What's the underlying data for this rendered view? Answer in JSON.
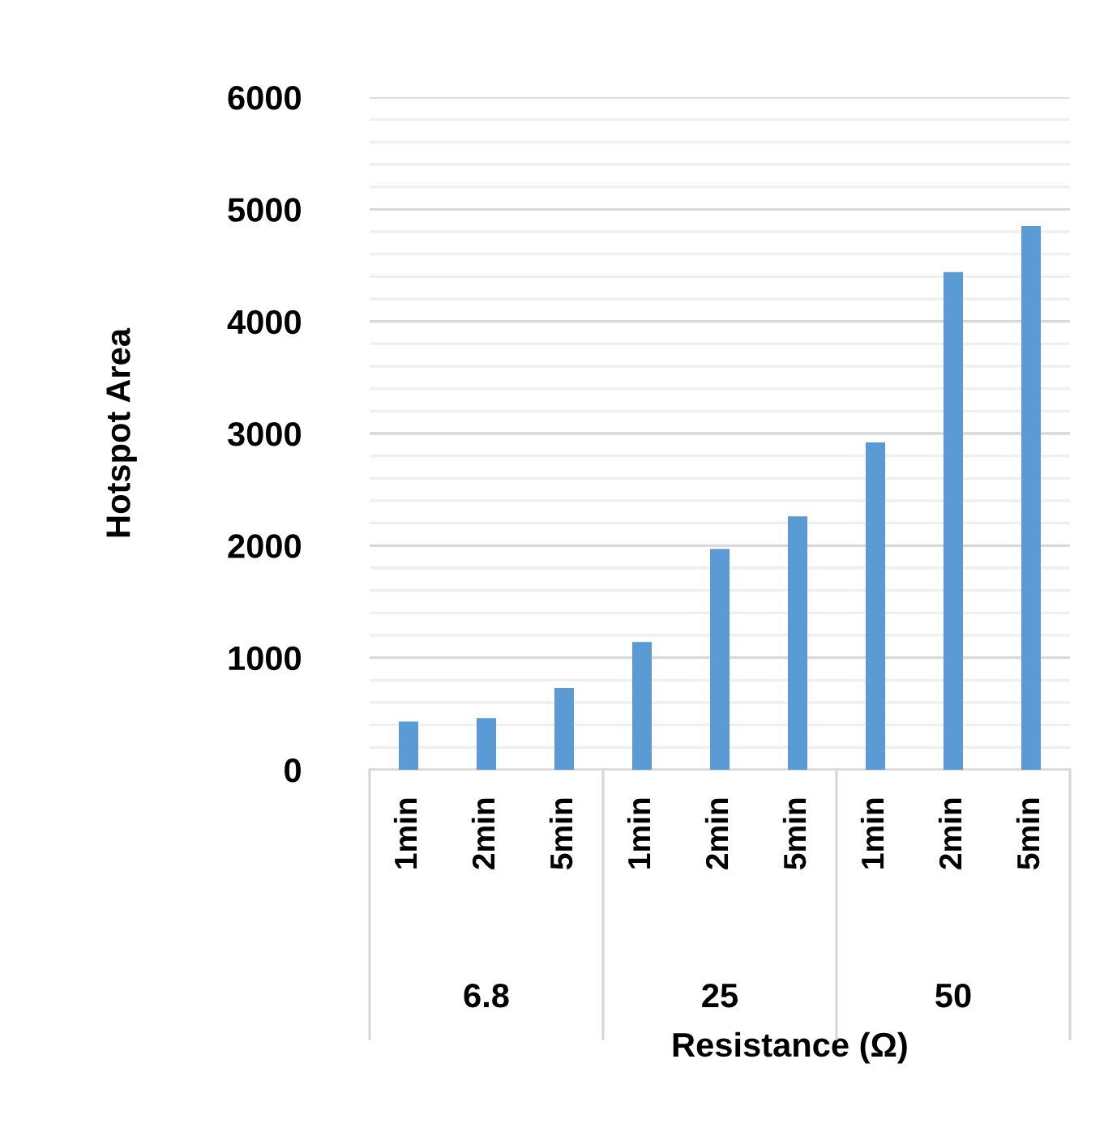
{
  "chart_data": {
    "type": "bar",
    "xlabel": "Resistance (Ω)",
    "ylabel": "Hotspot Area",
    "categories": [
      "1min",
      "2min",
      "5min",
      "1min",
      "2min",
      "5min",
      "1min",
      "2min",
      "5min"
    ],
    "values": [
      430,
      460,
      730,
      1140,
      1970,
      2260,
      2920,
      4440,
      4850
    ],
    "color": "#5b9bd5",
    "annotations": [
      "6.8",
      "25",
      "50"
    ],
    "ylim": [
      0,
      6000
    ],
    "yticks": [
      0,
      {
        "value": 200,
        "label": null
      },
      {
        "value": 400,
        "label": null
      },
      {
        "value": 600,
        "label": null
      },
      {
        "value": 800,
        "label": null
      },
      1000,
      {
        "value": 1200,
        "label": null
      },
      {
        "value": 1400,
        "label": null
      },
      {
        "value": 1600,
        "label": null
      },
      {
        "value": 1800,
        "label": null
      },
      2000,
      {
        "value": 2200,
        "label": null
      },
      {
        "value": 2400,
        "label": null
      },
      {
        "value": 2600,
        "label": null
      },
      {
        "value": 2800,
        "label": null
      },
      3000,
      {
        "value": 3200,
        "label": null
      },
      {
        "value": 3400,
        "label": null
      },
      {
        "value": 3600,
        "label": null
      },
      {
        "value": 3800,
        "label": null
      },
      4000,
      {
        "value": 4200,
        "label": null
      },
      {
        "value": 4400,
        "label": null
      },
      {
        "value": 4600,
        "label": null
      },
      {
        "value": 4800,
        "label": null
      },
      5000,
      {
        "value": 5200,
        "label": null
      },
      {
        "value": 5400,
        "label": null
      },
      {
        "value": 5600,
        "label": null
      },
      {
        "value": 5800,
        "label": null
      },
      6000
    ],
    "grid": "y"
  }
}
